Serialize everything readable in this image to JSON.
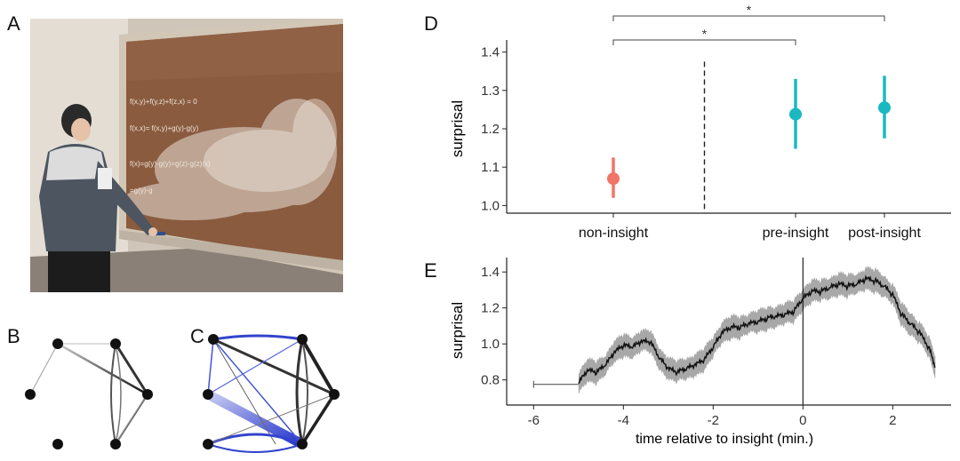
{
  "panels": {
    "a": "A",
    "b": "B",
    "c": "C",
    "d": "D",
    "e": "E"
  },
  "board_text": [
    "f(x,y)+f(y,z)+f(z,x) = 0",
    "f(x,x)= f(x,y)+g(y)-g(y)",
    "f(x)=g(y)-g(y)=g(z)-g(z)(x)",
    "=g(y)-g"
  ],
  "chart_data": [
    {
      "type": "scatter",
      "panel": "D",
      "ylabel": "surprisal",
      "xlabel": "",
      "categories": [
        "non-insight",
        "pre-insight",
        "post-insight"
      ],
      "points": [
        {
          "category": "non-insight",
          "mean": 1.07,
          "low": 1.02,
          "high": 1.125,
          "color": "#f07566"
        },
        {
          "category": "pre-insight",
          "mean": 1.238,
          "low": 1.148,
          "high": 1.33,
          "color": "#1ab8c0"
        },
        {
          "category": "post-insight",
          "mean": 1.255,
          "low": 1.175,
          "high": 1.338,
          "color": "#1ab8c0"
        }
      ],
      "ylim": [
        0.98,
        1.42
      ],
      "yticks": [
        "1.0",
        "1.1",
        "1.2",
        "1.3",
        "1.4"
      ],
      "ytick_values": [
        1.0,
        1.1,
        1.2,
        1.3,
        1.4
      ],
      "divider_between": [
        "non-insight",
        "pre-insight"
      ],
      "significance": [
        {
          "from": "non-insight",
          "to": "pre-insight",
          "label": "*"
        },
        {
          "from": "non-insight",
          "to": "post-insight",
          "label": "*"
        }
      ]
    },
    {
      "type": "line",
      "panel": "E",
      "ylabel": "surprisal",
      "xlabel": "time relative to insight (min.)",
      "xlim": [
        -6.6,
        3.3
      ],
      "ylim": [
        0.66,
        1.48
      ],
      "xticks": [
        "-6",
        "-4",
        "-2",
        "0",
        "2"
      ],
      "xtick_values": [
        -6,
        -4,
        -2,
        0,
        2
      ],
      "yticks": [
        "0.8",
        "1.0",
        "1.2",
        "1.4"
      ],
      "ytick_values": [
        0.8,
        1.0,
        1.2,
        1.4
      ],
      "vertical_line_x": 0,
      "initial_segment": {
        "x": [
          -6.0,
          -5.0
        ],
        "y": 0.775
      },
      "series": [
        {
          "x": [
            -5.0,
            -4.8,
            -4.6,
            -4.4,
            -4.2,
            -4.0,
            -3.8,
            -3.6,
            -3.4,
            -3.2,
            -3.0,
            -2.8,
            -2.6,
            -2.4,
            -2.2,
            -2.0,
            -1.8,
            -1.6,
            -1.4,
            -1.2,
            -1.0,
            -0.8,
            -0.6,
            -0.4,
            -0.2,
            0.0,
            0.2,
            0.4,
            0.6,
            0.8,
            1.0,
            1.2,
            1.4,
            1.6,
            1.8,
            2.0,
            2.2,
            2.4,
            2.6,
            2.8,
            2.95
          ],
          "y": [
            0.78,
            0.85,
            0.84,
            0.88,
            0.95,
            0.99,
            0.98,
            1.01,
            1.01,
            0.92,
            0.86,
            0.84,
            0.86,
            0.88,
            0.91,
            0.98,
            1.06,
            1.09,
            1.09,
            1.11,
            1.12,
            1.14,
            1.15,
            1.16,
            1.18,
            1.25,
            1.29,
            1.29,
            1.31,
            1.33,
            1.32,
            1.33,
            1.36,
            1.35,
            1.32,
            1.27,
            1.16,
            1.11,
            1.06,
            0.98,
            0.87
          ],
          "band": 0.05,
          "color": "#111111",
          "band_color": "#9e9e9e"
        }
      ]
    }
  ]
}
